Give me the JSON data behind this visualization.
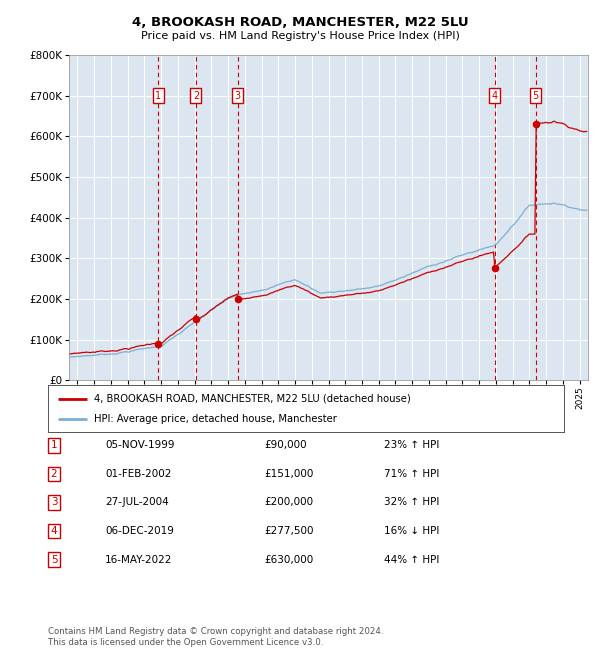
{
  "title": "4, BROOKASH ROAD, MANCHESTER, M22 5LU",
  "subtitle": "Price paid vs. HM Land Registry's House Price Index (HPI)",
  "legend_label_red": "4, BROOKASH ROAD, MANCHESTER, M22 5LU (detached house)",
  "legend_label_blue": "HPI: Average price, detached house, Manchester",
  "footer": "Contains HM Land Registry data © Crown copyright and database right 2024.\nThis data is licensed under the Open Government Licence v3.0.",
  "transactions": [
    {
      "num": 1,
      "date": "05-NOV-1999",
      "price": 90000,
      "pct": "23%",
      "dir": "↑",
      "year": 1999.84
    },
    {
      "num": 2,
      "date": "01-FEB-2002",
      "price": 151000,
      "pct": "71%",
      "dir": "↑",
      "year": 2002.08
    },
    {
      "num": 3,
      "date": "27-JUL-2004",
      "price": 200000,
      "pct": "32%",
      "dir": "↑",
      "year": 2004.57
    },
    {
      "num": 4,
      "date": "06-DEC-2019",
      "price": 277500,
      "pct": "16%",
      "dir": "↓",
      "year": 2019.93
    },
    {
      "num": 5,
      "date": "16-MAY-2022",
      "price": 630000,
      "pct": "44%",
      "dir": "↑",
      "year": 2022.37
    }
  ],
  "xmin": 1994.5,
  "xmax": 2025.5,
  "ymin": 0,
  "ymax": 800000,
  "yticks": [
    0,
    100000,
    200000,
    300000,
    400000,
    500000,
    600000,
    700000,
    800000
  ],
  "background_color": "#dce6f1",
  "red_color": "#cc0000",
  "blue_color": "#7bafd4",
  "grid_color": "#ffffff"
}
